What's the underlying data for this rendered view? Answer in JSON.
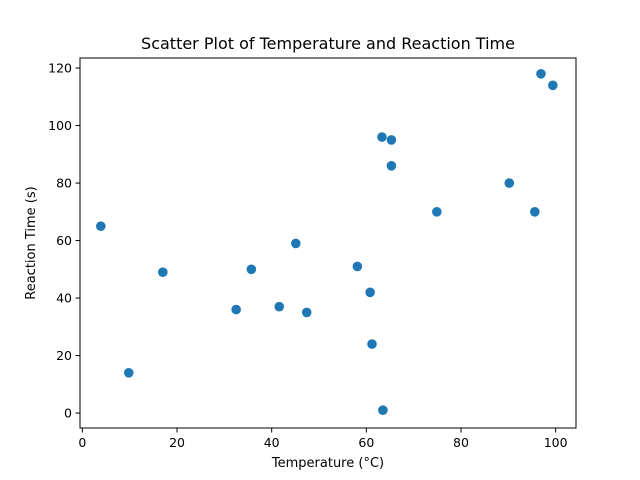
{
  "chart_data": {
    "type": "scatter",
    "title": "Scatter Plot of Temperature and Reaction Time",
    "xlabel": "Temperature (°C)",
    "ylabel": "Reaction Time (s)",
    "xlim": [
      -0.5,
      104.3
    ],
    "ylim": [
      -5.2,
      123.5
    ],
    "xticks": [
      0,
      20,
      40,
      60,
      80,
      100
    ],
    "yticks": [
      0,
      20,
      40,
      60,
      80,
      100,
      120
    ],
    "grid": false,
    "legend": "none",
    "color": "#1f77b4",
    "points": [
      {
        "x": 3.9,
        "y": 65
      },
      {
        "x": 9.8,
        "y": 14
      },
      {
        "x": 17.0,
        "y": 49
      },
      {
        "x": 32.5,
        "y": 36
      },
      {
        "x": 35.7,
        "y": 50
      },
      {
        "x": 41.6,
        "y": 37
      },
      {
        "x": 45.1,
        "y": 59
      },
      {
        "x": 47.4,
        "y": 35
      },
      {
        "x": 58.1,
        "y": 51
      },
      {
        "x": 60.8,
        "y": 42
      },
      {
        "x": 61.2,
        "y": 24
      },
      {
        "x": 63.3,
        "y": 96
      },
      {
        "x": 63.5,
        "y": 1
      },
      {
        "x": 65.3,
        "y": 95
      },
      {
        "x": 65.3,
        "y": 86
      },
      {
        "x": 74.9,
        "y": 70
      },
      {
        "x": 90.2,
        "y": 80
      },
      {
        "x": 95.6,
        "y": 70
      },
      {
        "x": 96.9,
        "y": 118
      },
      {
        "x": 99.4,
        "y": 114
      }
    ]
  }
}
